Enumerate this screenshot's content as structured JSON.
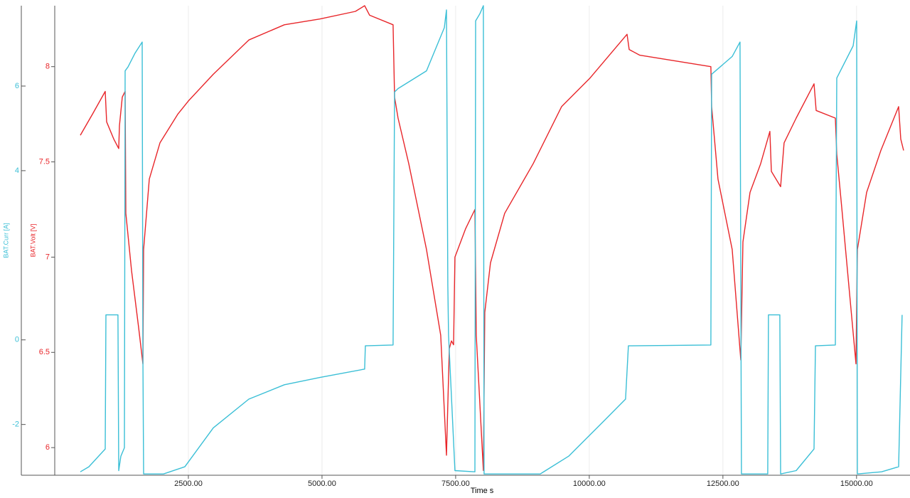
{
  "chart_data": {
    "type": "line",
    "xlabel": "Time s",
    "ylabel": "BAT.Curr [A]",
    "y2label": "BAT.Volt [V]",
    "xlim": [
      0,
      16000
    ],
    "xticks": [
      {
        "value": 2500,
        "label": "2500.00"
      },
      {
        "value": 5000,
        "label": "5000.00"
      },
      {
        "value": 7500,
        "label": "7500.00"
      },
      {
        "value": 10000,
        "label": "10000.00"
      },
      {
        "value": 12500,
        "label": "12500.00"
      },
      {
        "value": 15000,
        "label": "15000.00"
      }
    ],
    "ylim": [
      -3.2,
      7.9
    ],
    "yticks": [
      -2,
      0,
      4,
      6
    ],
    "y2lim": [
      5.855,
      8.32
    ],
    "y2ticks": [
      6,
      6.5,
      7,
      7.5,
      8
    ],
    "grid": true,
    "series": [
      {
        "name": "BAT.Volt [V]",
        "color": "#e8262a",
        "axis": "y2",
        "x": [
          479,
          705,
          944,
          971,
          1104,
          1197,
          1210,
          1263,
          1317,
          1330,
          1436,
          1569,
          1649,
          1662,
          1769,
          1968,
          2301,
          2500,
          2966,
          3631,
          4296,
          4960,
          5625,
          5798,
          5891,
          6330,
          6357,
          6423,
          6623,
          6955,
          7221,
          7328,
          7381,
          7421,
          7461,
          7487,
          7687,
          7860,
          7886,
          8019,
          8045,
          8152,
          8418,
          8950,
          9482,
          10014,
          10706,
          10746,
          10945,
          12275,
          12289,
          12408,
          12674,
          12834,
          12874,
          13007,
          13206,
          13379,
          13406,
          13579,
          13645,
          13871,
          14204,
          14244,
          14603,
          14630,
          14723,
          14989,
          15016,
          15189,
          15455,
          15787,
          15827,
          15880
        ],
        "values": [
          7.64,
          7.75,
          7.87,
          7.71,
          7.62,
          7.57,
          7.69,
          7.84,
          7.87,
          7.23,
          6.93,
          6.63,
          6.44,
          7.04,
          7.41,
          7.6,
          7.75,
          7.82,
          7.96,
          8.14,
          8.22,
          8.25,
          8.29,
          8.32,
          8.27,
          8.22,
          7.84,
          7.73,
          7.49,
          7.04,
          6.59,
          5.96,
          6.52,
          6.56,
          6.54,
          7.0,
          7.15,
          7.25,
          6.59,
          5.88,
          6.71,
          6.97,
          7.23,
          7.49,
          7.79,
          7.94,
          8.17,
          8.09,
          8.06,
          8.0,
          7.79,
          7.41,
          7.04,
          6.46,
          7.08,
          7.34,
          7.49,
          7.66,
          7.45,
          7.37,
          7.6,
          7.73,
          7.91,
          7.77,
          7.73,
          7.54,
          7.26,
          6.44,
          7.04,
          7.34,
          7.56,
          7.79,
          7.62,
          7.56
        ]
      },
      {
        "name": "BAT.Curr [A]",
        "color": "#3bbfd6",
        "x": [
          479,
          638,
          944,
          957,
          1183,
          1197,
          1237,
          1303,
          1317,
          1370,
          1503,
          1636,
          1649,
          1662,
          2035,
          2434,
          2966,
          3631,
          4296,
          4960,
          5798,
          5811,
          6330,
          6357,
          6423,
          6955,
          7288,
          7328,
          7354,
          7367,
          7487,
          7860,
          7873,
          7953,
          8019,
          8032,
          8285,
          9083,
          9615,
          10280,
          10679,
          10732,
          12275,
          12289,
          12674,
          12820,
          12847,
          13339,
          13352,
          13565,
          13579,
          13871,
          14204,
          14231,
          14603,
          14630,
          14936,
          15003,
          15016,
          15468,
          15787,
          15853
        ],
        "values": [
          -3.12,
          -3.0,
          -2.58,
          0.59,
          0.59,
          -3.09,
          -2.75,
          -2.55,
          6.36,
          6.45,
          6.78,
          7.04,
          -0.39,
          -3.17,
          -3.17,
          -3.0,
          -2.08,
          -1.4,
          -1.06,
          -0.89,
          -0.69,
          -0.14,
          -0.12,
          5.86,
          5.94,
          6.36,
          7.38,
          7.8,
          1.3,
          0.12,
          -3.09,
          -3.12,
          7.54,
          7.71,
          7.9,
          -3.17,
          -3.17,
          -3.17,
          -2.75,
          -1.91,
          -1.4,
          -0.14,
          -0.12,
          6.28,
          6.7,
          7.04,
          -3.17,
          -3.17,
          0.59,
          0.59,
          -3.17,
          -3.09,
          -2.58,
          -0.14,
          -0.12,
          6.19,
          6.95,
          7.54,
          -3.17,
          -3.12,
          -3.0,
          0.59
        ]
      }
    ]
  }
}
